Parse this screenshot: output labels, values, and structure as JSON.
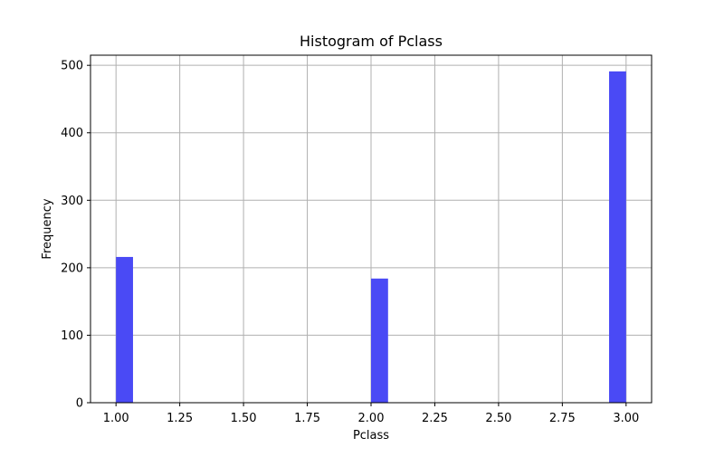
{
  "chart_data": {
    "type": "bar",
    "title": "Histogram of Pclass",
    "xlabel": "Pclass",
    "ylabel": "Frequency",
    "xlim": [
      0.9,
      3.1
    ],
    "ylim": [
      0,
      515
    ],
    "x_ticks": [
      1.0,
      1.25,
      1.5,
      1.75,
      2.0,
      2.25,
      2.5,
      2.75,
      3.0
    ],
    "x_tick_labels": [
      "1.00",
      "1.25",
      "1.50",
      "1.75",
      "2.00",
      "2.25",
      "2.50",
      "2.75",
      "3.00"
    ],
    "y_ticks": [
      0,
      100,
      200,
      300,
      400,
      500
    ],
    "y_tick_labels": [
      "0",
      "100",
      "200",
      "300",
      "400",
      "500"
    ],
    "grid": true,
    "bar_color": "#4a4af5",
    "bin_width": 0.0667,
    "bars": [
      {
        "bin_start": 1.0,
        "bin_end": 1.0667,
        "value": 216
      },
      {
        "bin_start": 2.0,
        "bin_end": 2.0667,
        "value": 184
      },
      {
        "bin_start": 2.9333,
        "bin_end": 3.0,
        "value": 491
      }
    ]
  }
}
